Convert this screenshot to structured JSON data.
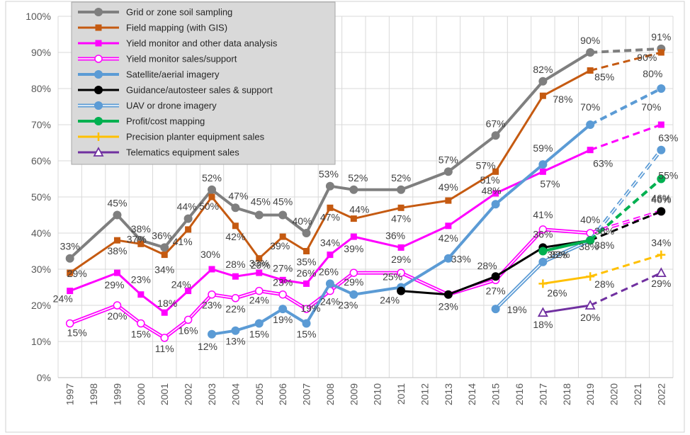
{
  "chart_data": {
    "type": "line",
    "title": "",
    "xlabel": "",
    "ylabel": "",
    "ylim": [
      0,
      100
    ],
    "y_ticks": [
      "0%",
      "10%",
      "20%",
      "30%",
      "40%",
      "50%",
      "60%",
      "70%",
      "80%",
      "90%",
      "100%"
    ],
    "categories": [
      "1997",
      "1998",
      "1999",
      "2000",
      "2001",
      "2002",
      "2003",
      "2004",
      "2005",
      "2006",
      "2007",
      "2008",
      "2009",
      "2010",
      "2011",
      "2012",
      "2013",
      "2014",
      "2015",
      "2016",
      "2017",
      "2018",
      "2019",
      "2020",
      "2021",
      "2022"
    ],
    "legend_position": "top-left",
    "grid": true,
    "projection_note": "dashed segments from 2019 to 2022 are projections",
    "series": [
      {
        "name": "Grid or zone soil sampling",
        "color": "#7f7f7f",
        "marker": "circle",
        "width": 4,
        "points": [
          [
            "1997",
            33,
            "33%"
          ],
          [
            "1999",
            45,
            "45%"
          ],
          [
            "2000",
            38,
            "38%"
          ],
          [
            "2001",
            36,
            "36%"
          ],
          [
            "2002",
            44,
            "44%"
          ],
          [
            "2003",
            52,
            "52%"
          ],
          [
            "2004",
            47,
            "47%"
          ],
          [
            "2005",
            45,
            "45%"
          ],
          [
            "2006",
            45,
            "45%"
          ],
          [
            "2007",
            40,
            "40%"
          ],
          [
            "2008",
            53,
            "53%"
          ],
          [
            "2009",
            52,
            "52%"
          ],
          [
            "2011",
            52,
            "52%"
          ],
          [
            "2013",
            57,
            "57%"
          ],
          [
            "2015",
            67,
            "67%"
          ],
          [
            "2017",
            82,
            "82%"
          ],
          [
            "2019",
            90,
            "90%"
          ]
        ],
        "projection": [
          [
            "2022",
            91,
            "91%"
          ]
        ]
      },
      {
        "name": "Field mapping (with GIS)",
        "color": "#c55a11",
        "marker": "square",
        "width": 3,
        "points": [
          [
            "1997",
            29,
            "29%"
          ],
          [
            "1999",
            38,
            "38%"
          ],
          [
            "2000",
            37,
            "37%"
          ],
          [
            "2001",
            34,
            "34%"
          ],
          [
            "2002",
            41,
            "41%"
          ],
          [
            "2003",
            50,
            "50%"
          ],
          [
            "2004",
            42,
            "42%"
          ],
          [
            "2005",
            33,
            "33%"
          ],
          [
            "2006",
            39,
            "39%"
          ],
          [
            "2007",
            35,
            "35%"
          ],
          [
            "2008",
            47,
            "47%"
          ],
          [
            "2009",
            44,
            "44%"
          ],
          [
            "2011",
            47,
            "47%"
          ],
          [
            "2013",
            49,
            "49%"
          ],
          [
            "2015",
            57,
            "57%"
          ],
          [
            "2017",
            78,
            "78%"
          ],
          [
            "2019",
            85,
            "85%"
          ]
        ],
        "projection": [
          [
            "2022",
            90,
            "90%"
          ]
        ]
      },
      {
        "name": "Yield monitor and other data analysis",
        "color": "#ff00ff",
        "marker": "square",
        "width": 3,
        "points": [
          [
            "1997",
            24,
            "24%"
          ],
          [
            "1999",
            29,
            "29%"
          ],
          [
            "2000",
            23,
            "23%"
          ],
          [
            "2001",
            18,
            "18%"
          ],
          [
            "2002",
            24,
            "24%"
          ],
          [
            "2003",
            30,
            "30%"
          ],
          [
            "2004",
            28,
            "28%"
          ],
          [
            "2005",
            29,
            "29%"
          ],
          [
            "2006",
            27,
            "27%"
          ],
          [
            "2007",
            26,
            "26%"
          ],
          [
            "2008",
            34,
            "34%"
          ],
          [
            "2009",
            39,
            "39%"
          ],
          [
            "2011",
            36,
            "36%"
          ],
          [
            "2013",
            42,
            "42%"
          ],
          [
            "2015",
            51,
            "51%"
          ],
          [
            "2017",
            57,
            "57%"
          ],
          [
            "2019",
            63,
            "63%"
          ]
        ],
        "projection": [
          [
            "2022",
            70,
            "70%"
          ]
        ]
      },
      {
        "name": "Yield monitor sales/support",
        "color": "#ff00ff",
        "marker": "open-circle",
        "width": 2,
        "double": true,
        "points": [
          [
            "1997",
            15,
            "15%"
          ],
          [
            "1999",
            20,
            "20%"
          ],
          [
            "2000",
            15,
            "15%"
          ],
          [
            "2001",
            11,
            "11%"
          ],
          [
            "2002",
            16,
            "16%"
          ],
          [
            "2003",
            23,
            "23%"
          ],
          [
            "2004",
            22,
            "22%"
          ],
          [
            "2005",
            24,
            "24%"
          ],
          [
            "2006",
            23,
            "23%"
          ],
          [
            "2007",
            19,
            "19%"
          ],
          [
            "2008",
            24,
            "24%"
          ],
          [
            "2009",
            29,
            "29%"
          ],
          [
            "2011",
            29,
            "29%"
          ],
          [
            "2013",
            23,
            ""
          ],
          [
            "2015",
            27,
            "27%"
          ],
          [
            "2017",
            41,
            "41%"
          ],
          [
            "2019",
            40,
            "40%"
          ]
        ],
        "projection": [
          [
            "2022",
            46,
            "46%"
          ]
        ]
      },
      {
        "name": "Satellite/aerial imagery",
        "color": "#5b9bd5",
        "marker": "circle",
        "width": 4,
        "points": [
          [
            "2003",
            12,
            "12%"
          ],
          [
            "2004",
            13,
            "13%"
          ],
          [
            "2005",
            15,
            "15%"
          ],
          [
            "2006",
            19,
            "19%"
          ],
          [
            "2007",
            15,
            "15%"
          ],
          [
            "2008",
            26,
            "26%"
          ],
          [
            "2009",
            23,
            "23%"
          ],
          [
            "2011",
            25,
            "25%"
          ],
          [
            "2013",
            33,
            "33%"
          ],
          [
            "2015",
            48,
            "48%"
          ],
          [
            "2017",
            59,
            "59%"
          ],
          [
            "2019",
            70,
            "70%"
          ]
        ],
        "projection": [
          [
            "2022",
            80,
            "80%"
          ]
        ]
      },
      {
        "name": "Guidance/autosteer sales & support",
        "color": "#000000",
        "marker": "circle",
        "width": 3,
        "points": [
          [
            "2011",
            24,
            "24%"
          ],
          [
            "2013",
            23,
            "23%"
          ],
          [
            "2015",
            28,
            "28%"
          ],
          [
            "2017",
            36,
            "36%"
          ],
          [
            "2019",
            38,
            "38%"
          ]
        ],
        "projection": [
          [
            "2022",
            46,
            "46%"
          ]
        ]
      },
      {
        "name": "UAV or drone imagery",
        "color": "#5b9bd5",
        "marker": "circle",
        "width": 2,
        "double": true,
        "points": [
          [
            "2015",
            19,
            "19%"
          ],
          [
            "2017",
            32,
            "32%"
          ],
          [
            "2019",
            38,
            "38%"
          ]
        ],
        "projection": [
          [
            "2022",
            63,
            "63%"
          ]
        ]
      },
      {
        "name": "Profit/cost mapping",
        "color": "#00b050",
        "marker": "circle",
        "width": 4,
        "points": [
          [
            "2017",
            35,
            "35%"
          ],
          [
            "2019",
            38,
            "38%"
          ]
        ],
        "projection": [
          [
            "2022",
            55,
            "55%"
          ]
        ]
      },
      {
        "name": "Precision planter equipment sales",
        "color": "#ffc000",
        "marker": "plus",
        "width": 3,
        "points": [
          [
            "2017",
            26,
            "26%"
          ],
          [
            "2019",
            28,
            "28%"
          ]
        ],
        "projection": [
          [
            "2022",
            34,
            "34%"
          ]
        ]
      },
      {
        "name": "Telematics equipment sales",
        "color": "#7030a0",
        "marker": "open-triangle",
        "width": 3,
        "points": [
          [
            "2017",
            18,
            "18%"
          ],
          [
            "2019",
            20,
            "20%"
          ]
        ],
        "projection": [
          [
            "2022",
            29,
            "29%"
          ]
        ]
      }
    ]
  }
}
